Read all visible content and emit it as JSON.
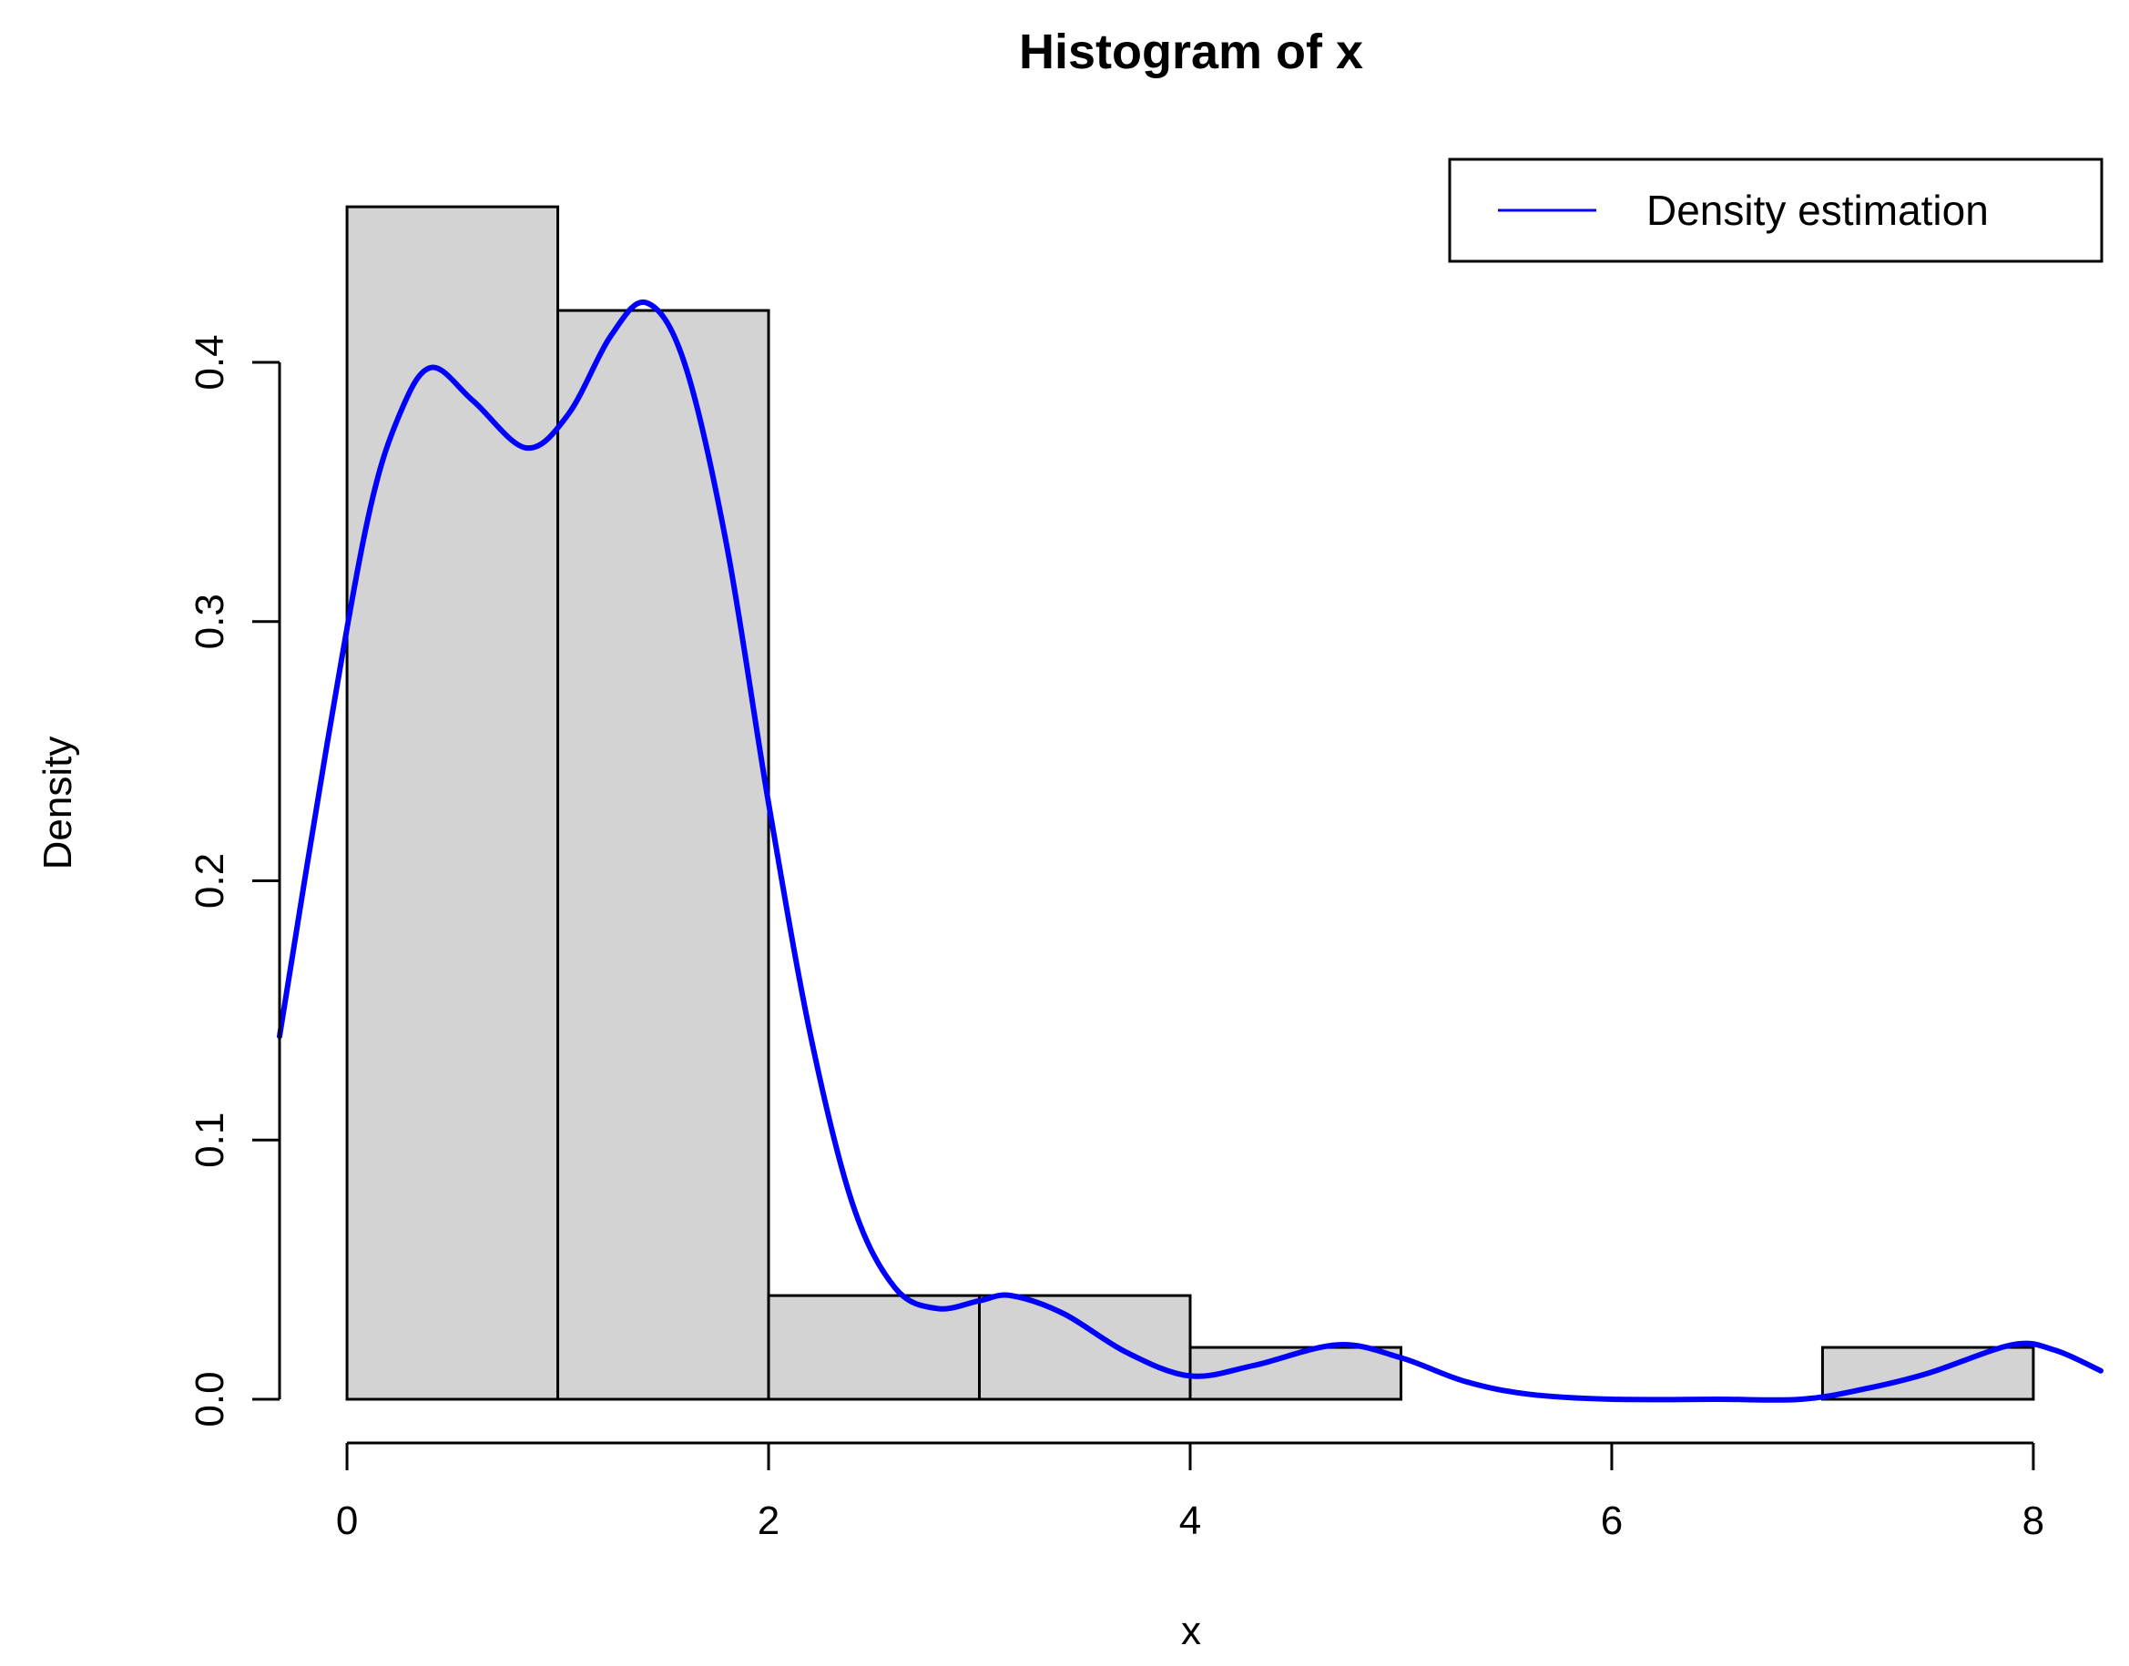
{
  "chart_data": {
    "type": "bar",
    "title": "Histogram of x",
    "xlabel": "x",
    "ylabel": "Density",
    "xlim": [
      -0.32,
      8.32
    ],
    "ylim": [
      0,
      0.4
    ],
    "x_ticks": [
      0,
      2,
      4,
      6,
      8
    ],
    "x_tick_labels": [
      "0",
      "2",
      "4",
      "6",
      "8"
    ],
    "y_ticks": [
      0.0,
      0.1,
      0.2,
      0.3,
      0.4
    ],
    "y_tick_labels": [
      "0.0",
      "0.1",
      "0.2",
      "0.3",
      "0.4"
    ],
    "bins": [
      {
        "start": 0,
        "end": 1,
        "density": 0.46
      },
      {
        "start": 1,
        "end": 2,
        "density": 0.42
      },
      {
        "start": 2,
        "end": 3,
        "density": 0.04
      },
      {
        "start": 3,
        "end": 4,
        "density": 0.04
      },
      {
        "start": 4,
        "end": 5,
        "density": 0.02
      },
      {
        "start": 5,
        "end": 6,
        "density": 0.0
      },
      {
        "start": 6,
        "end": 7,
        "density": 0.0
      },
      {
        "start": 7,
        "end": 8,
        "density": 0.02
      }
    ],
    "bar_fill": "#d3d3d3",
    "series": [
      {
        "name": "Density estimation",
        "color": "#0000ff",
        "x": [
          -0.32,
          -0.1,
          0.1,
          0.25,
          0.4,
          0.6,
          0.85,
          1.05,
          1.25,
          1.42,
          1.6,
          1.8,
          2.0,
          2.2,
          2.4,
          2.6,
          2.8,
          3.0,
          3.15,
          3.4,
          3.7,
          4.0,
          4.3,
          4.7,
          5.0,
          5.3,
          5.6,
          6.0,
          6.5,
          6.9,
          7.2,
          7.5,
          7.9,
          8.1,
          8.32
        ],
        "y": [
          0.14,
          0.25,
          0.34,
          0.38,
          0.398,
          0.385,
          0.367,
          0.38,
          0.41,
          0.423,
          0.4,
          0.33,
          0.23,
          0.14,
          0.075,
          0.043,
          0.035,
          0.038,
          0.04,
          0.033,
          0.018,
          0.009,
          0.013,
          0.021,
          0.016,
          0.007,
          0.002,
          0.0,
          0.0,
          0.0,
          0.004,
          0.01,
          0.021,
          0.019,
          0.011
        ]
      }
    ],
    "legend": {
      "position": "top-right",
      "entries": [
        "Density estimation"
      ]
    },
    "grid": false
  }
}
